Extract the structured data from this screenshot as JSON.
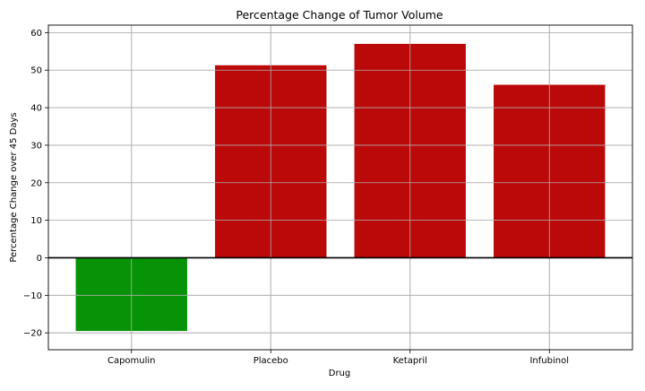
{
  "chart_data": {
    "type": "bar",
    "title": "Percentage Change of Tumor Volume",
    "xlabel": "Drug",
    "ylabel": "Percentage Change over 45 Days",
    "categories": [
      "Capomulin",
      "Placebo",
      "Ketapril",
      "Infubinol"
    ],
    "values": [
      -19.5,
      51.3,
      57.0,
      46.1
    ],
    "bar_colors": [
      "#079307",
      "#bb0808",
      "#bb0808",
      "#bb0808"
    ],
    "ylim": [
      -24.5,
      62
    ],
    "yticks": [
      -20,
      -10,
      0,
      10,
      20,
      30,
      40,
      50,
      60
    ],
    "ytick_labels": [
      "−20",
      "−10",
      "0",
      "10",
      "20",
      "30",
      "40",
      "50",
      "60"
    ],
    "grid": true,
    "zero_line": true
  }
}
